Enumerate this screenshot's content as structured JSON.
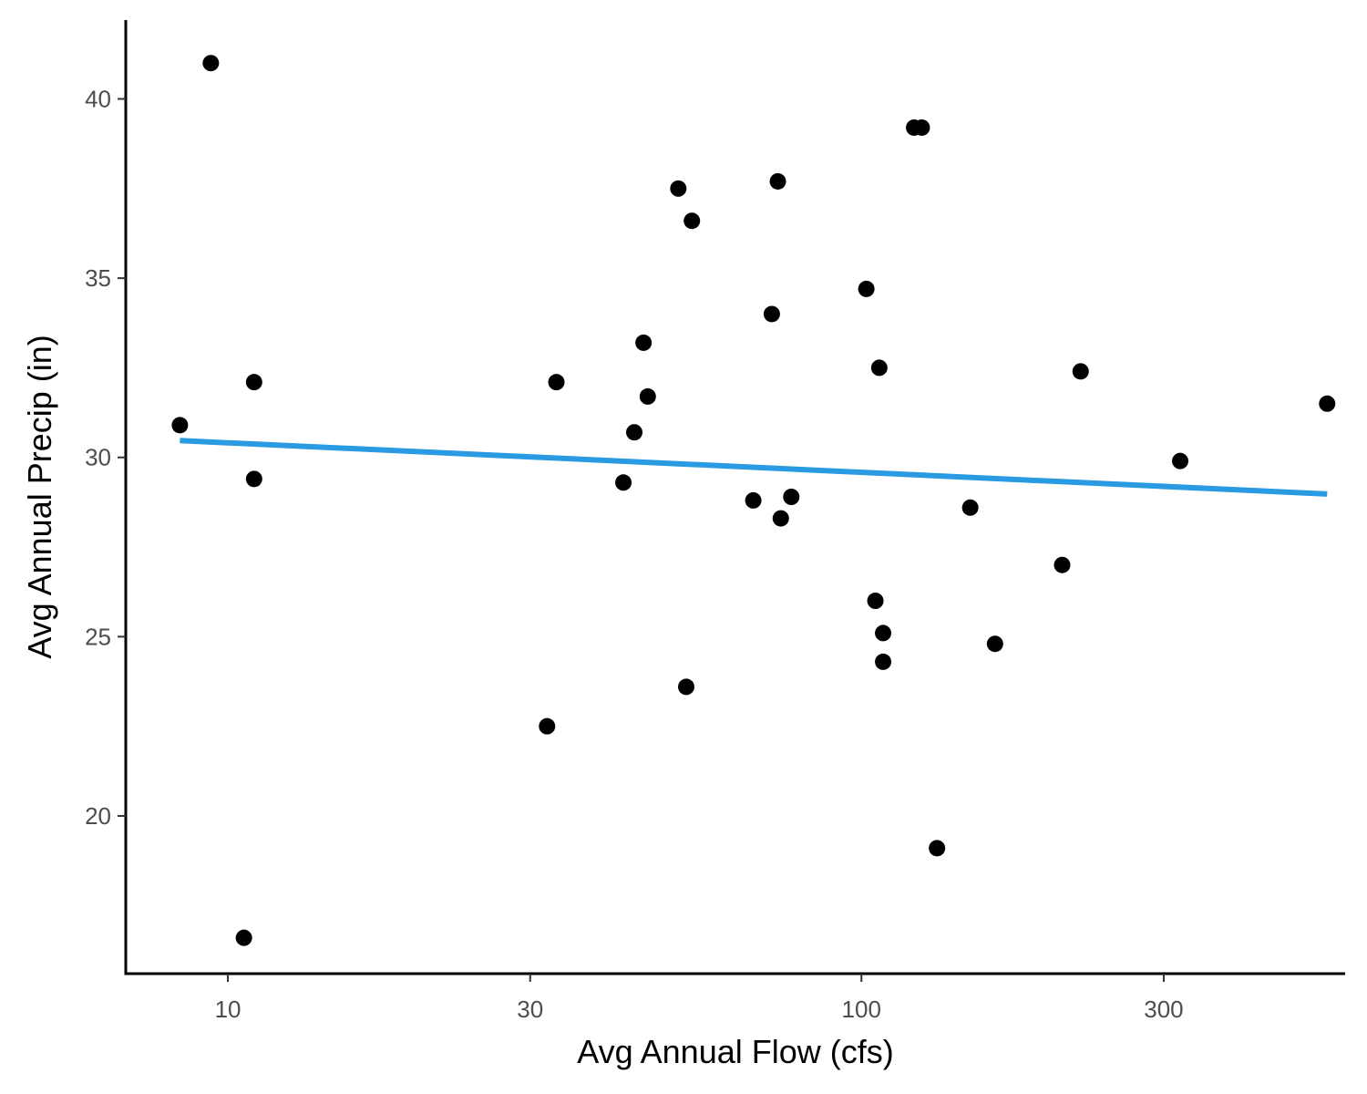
{
  "chart_data": {
    "type": "scatter",
    "title": "",
    "xlabel": "Avg Annual Flow (cfs)",
    "ylabel": "Avg Annual Precip (in)",
    "x_scale": "log10",
    "xlim": [
      6.9,
      580
    ],
    "ylim": [
      15.6,
      42.2
    ],
    "x_ticks": [
      10,
      30,
      100,
      300
    ],
    "x_tick_labels": [
      "10",
      "30",
      "100",
      "300"
    ],
    "y_ticks": [
      20,
      25,
      30,
      35,
      40
    ],
    "y_tick_labels": [
      "20",
      "25",
      "30",
      "35",
      "40"
    ],
    "grid": false,
    "legend": "none",
    "point_color": "#000000",
    "points": [
      {
        "x": 8.4,
        "y": 30.9
      },
      {
        "x": 9.4,
        "y": 41.0
      },
      {
        "x": 10.6,
        "y": 16.6
      },
      {
        "x": 11.0,
        "y": 32.1
      },
      {
        "x": 11.0,
        "y": 29.4
      },
      {
        "x": 31.9,
        "y": 22.5
      },
      {
        "x": 33.0,
        "y": 32.1
      },
      {
        "x": 42.1,
        "y": 29.3
      },
      {
        "x": 43.8,
        "y": 30.7
      },
      {
        "x": 45.3,
        "y": 33.2
      },
      {
        "x": 46.0,
        "y": 31.7
      },
      {
        "x": 51.4,
        "y": 37.5
      },
      {
        "x": 52.9,
        "y": 23.6
      },
      {
        "x": 54.0,
        "y": 36.6
      },
      {
        "x": 67.5,
        "y": 28.8
      },
      {
        "x": 72.2,
        "y": 34.0
      },
      {
        "x": 73.8,
        "y": 37.7
      },
      {
        "x": 74.6,
        "y": 28.3
      },
      {
        "x": 77.5,
        "y": 28.9
      },
      {
        "x": 101.8,
        "y": 34.7
      },
      {
        "x": 105.2,
        "y": 26.0
      },
      {
        "x": 106.7,
        "y": 32.5
      },
      {
        "x": 108.2,
        "y": 25.1
      },
      {
        "x": 108.2,
        "y": 24.3
      },
      {
        "x": 121.1,
        "y": 39.2
      },
      {
        "x": 124.5,
        "y": 39.2
      },
      {
        "x": 131.6,
        "y": 19.1
      },
      {
        "x": 148.5,
        "y": 28.6
      },
      {
        "x": 162.5,
        "y": 24.8
      },
      {
        "x": 207.4,
        "y": 27.0
      },
      {
        "x": 221.8,
        "y": 32.4
      },
      {
        "x": 318.5,
        "y": 29.9
      },
      {
        "x": 543.3,
        "y": 31.5
      }
    ],
    "trend_line": {
      "color": "#2a9be3",
      "start": {
        "x": 8.4,
        "y": 30.47
      },
      "end": {
        "x": 543.3,
        "y": 28.98
      }
    }
  }
}
